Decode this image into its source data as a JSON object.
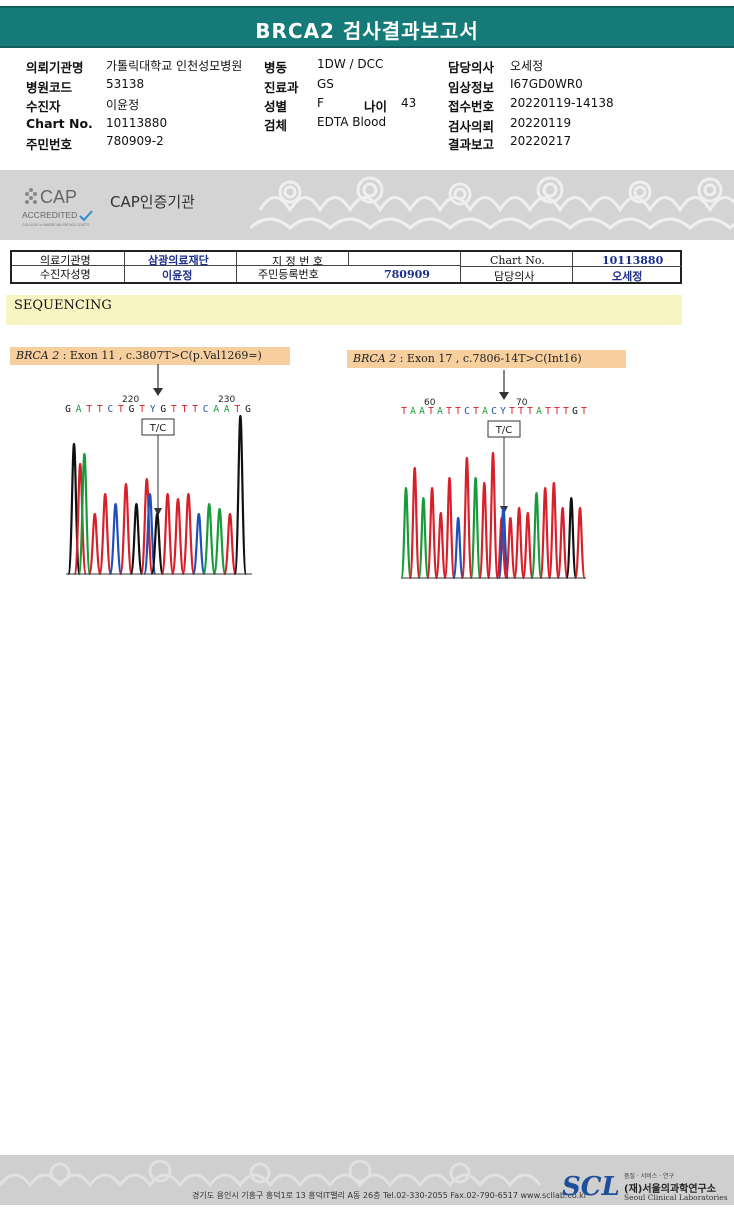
{
  "title": "BRCA2 검사결과보고서",
  "patient_info": {
    "col1": [
      {
        "key": "의뢰기관명",
        "value": "가톨릭대학교 인천성모병원"
      },
      {
        "key": "병원코드",
        "value": "53138"
      },
      {
        "key": "수진자",
        "value": "이윤정"
      },
      {
        "key": "Chart No.",
        "value": "10113880"
      },
      {
        "key": "주민번호",
        "value": "780909-2"
      }
    ],
    "col2": [
      {
        "key": "병동",
        "value": "1DW / DCC"
      },
      {
        "key": "진료과",
        "value": "GS"
      },
      {
        "key": "성별",
        "value": "F"
      },
      {
        "key": "검체",
        "value": "EDTA Blood"
      }
    ],
    "age_key": "나이",
    "age_value": "43",
    "col3": [
      {
        "key": "담당의사",
        "value": "오세정"
      },
      {
        "key": "임상정보",
        "value": "I67GD0WR0"
      },
      {
        "key": "접수번호",
        "value": "20220119-14138"
      },
      {
        "key": "검사의뢰",
        "value": "20220119"
      },
      {
        "key": "결과보고",
        "value": "20220217"
      }
    ]
  },
  "cap": {
    "logo_top": "CAP",
    "logo_mid": "ACCREDITED",
    "logo_small": "COLLEGE of AMERICAN PATHOLOGISTS",
    "label": "CAP인증기관"
  },
  "ref_table": {
    "row1": [
      {
        "label": "의료기관명",
        "value": "삼광의료재단"
      },
      {
        "label": "지 정 번 호",
        "value": ""
      },
      {
        "label": "Chart No.",
        "value": "10113880"
      }
    ],
    "row2": [
      {
        "label": "수진자성명",
        "value": "이윤정"
      },
      {
        "label": "주민등록번호",
        "value": "780909"
      },
      {
        "label": "담당의사",
        "value": "오세정"
      }
    ]
  },
  "section_label": "SEQUENCING",
  "variants": [
    {
      "gene": "BRCA 2",
      "desc": " : Exon 11 , c.3807T>C(p.Val1269=)",
      "tick_left": "220",
      "tick_right": "230",
      "bases": "GATTCTGTYGTTTCAATG",
      "call": "T/C"
    },
    {
      "gene": "BRCA 2",
      "desc": " : Exon 17 , c.7806-14T>C(Int16)",
      "tick_left": "60",
      "tick_right": "70",
      "bases": "TAATATTCTACYTTTATTTGT",
      "call": "T/C"
    }
  ],
  "footer": {
    "address": "경기도 용인시 기흥구 흥덕1로 13 흥덕IT밸리 A동 26층  Tel.02-330-2055  Fax.02-790-6517  www.scllab.co.kr",
    "logo": "SCL",
    "tagline": "품질 · 서비스 · 연구",
    "org_name": "(재)서울의과학연구소",
    "org_eng": "Seoul Clinical Laboratories"
  },
  "colors": {
    "title_bar": "#157a78",
    "base_A": "#1a9b3a",
    "base_C": "#1f4fb8",
    "base_G": "#111111",
    "base_T": "#d8202a",
    "base_Y": "#1f4fb8"
  }
}
